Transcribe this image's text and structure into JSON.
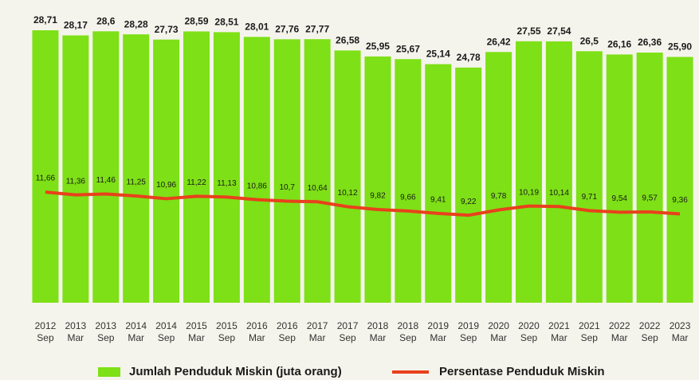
{
  "chart_data": {
    "type": "bar",
    "categories": [
      "2012 Sep",
      "2013 Mar",
      "2013 Sep",
      "2014 Mar",
      "2014 Sep",
      "2015 Mar",
      "2015 Sep",
      "2016 Mar",
      "2016 Sep",
      "2017 Mar",
      "2017 Sep",
      "2018 Mar",
      "2018 Sep",
      "2019 Mar",
      "2019 Sep",
      "2020 Mar",
      "2020 Sep",
      "2021 Mar",
      "2021 Sep",
      "2022 Mar",
      "2022 Sep",
      "2023 Mar"
    ],
    "series": [
      {
        "name": "Jumlah Penduduk Miskin (juta orang)",
        "color": "#7ee016",
        "values": [
          28.71,
          28.17,
          28.6,
          28.28,
          27.73,
          28.59,
          28.51,
          28.01,
          27.76,
          27.77,
          26.58,
          25.95,
          25.67,
          25.14,
          24.78,
          26.42,
          27.55,
          27.54,
          26.5,
          26.16,
          26.36,
          25.9
        ],
        "value_labels": [
          "28,71",
          "28,17",
          "28,6",
          "28,28",
          "27,73",
          "28,59",
          "28,51",
          "28,01",
          "27,76",
          "27,77",
          "26,58",
          "25,95",
          "25,67",
          "25,14",
          "24,78",
          "26,42",
          "27,55",
          "27,54",
          "26,5",
          "26,16",
          "26,36",
          "25,90"
        ]
      },
      {
        "name": "Persentase Penduduk Miskin",
        "color": "#e8411c",
        "type": "line",
        "values": [
          11.66,
          11.36,
          11.46,
          11.25,
          10.96,
          11.22,
          11.13,
          10.86,
          10.7,
          10.64,
          10.12,
          9.82,
          9.66,
          9.41,
          9.22,
          9.78,
          10.19,
          10.14,
          9.71,
          9.54,
          9.57,
          9.36
        ],
        "value_labels": [
          "11,66",
          "11,36",
          "11,46",
          "11,25",
          "10,96",
          "11,22",
          "11,13",
          "10,86",
          "10,7",
          "10,64",
          "10,12",
          "9,82",
          "9,66",
          "9,41",
          "9,22",
          "9,78",
          "10,19",
          "10,14",
          "9,71",
          "9,54",
          "9,57",
          "9,36"
        ]
      }
    ]
  }
}
